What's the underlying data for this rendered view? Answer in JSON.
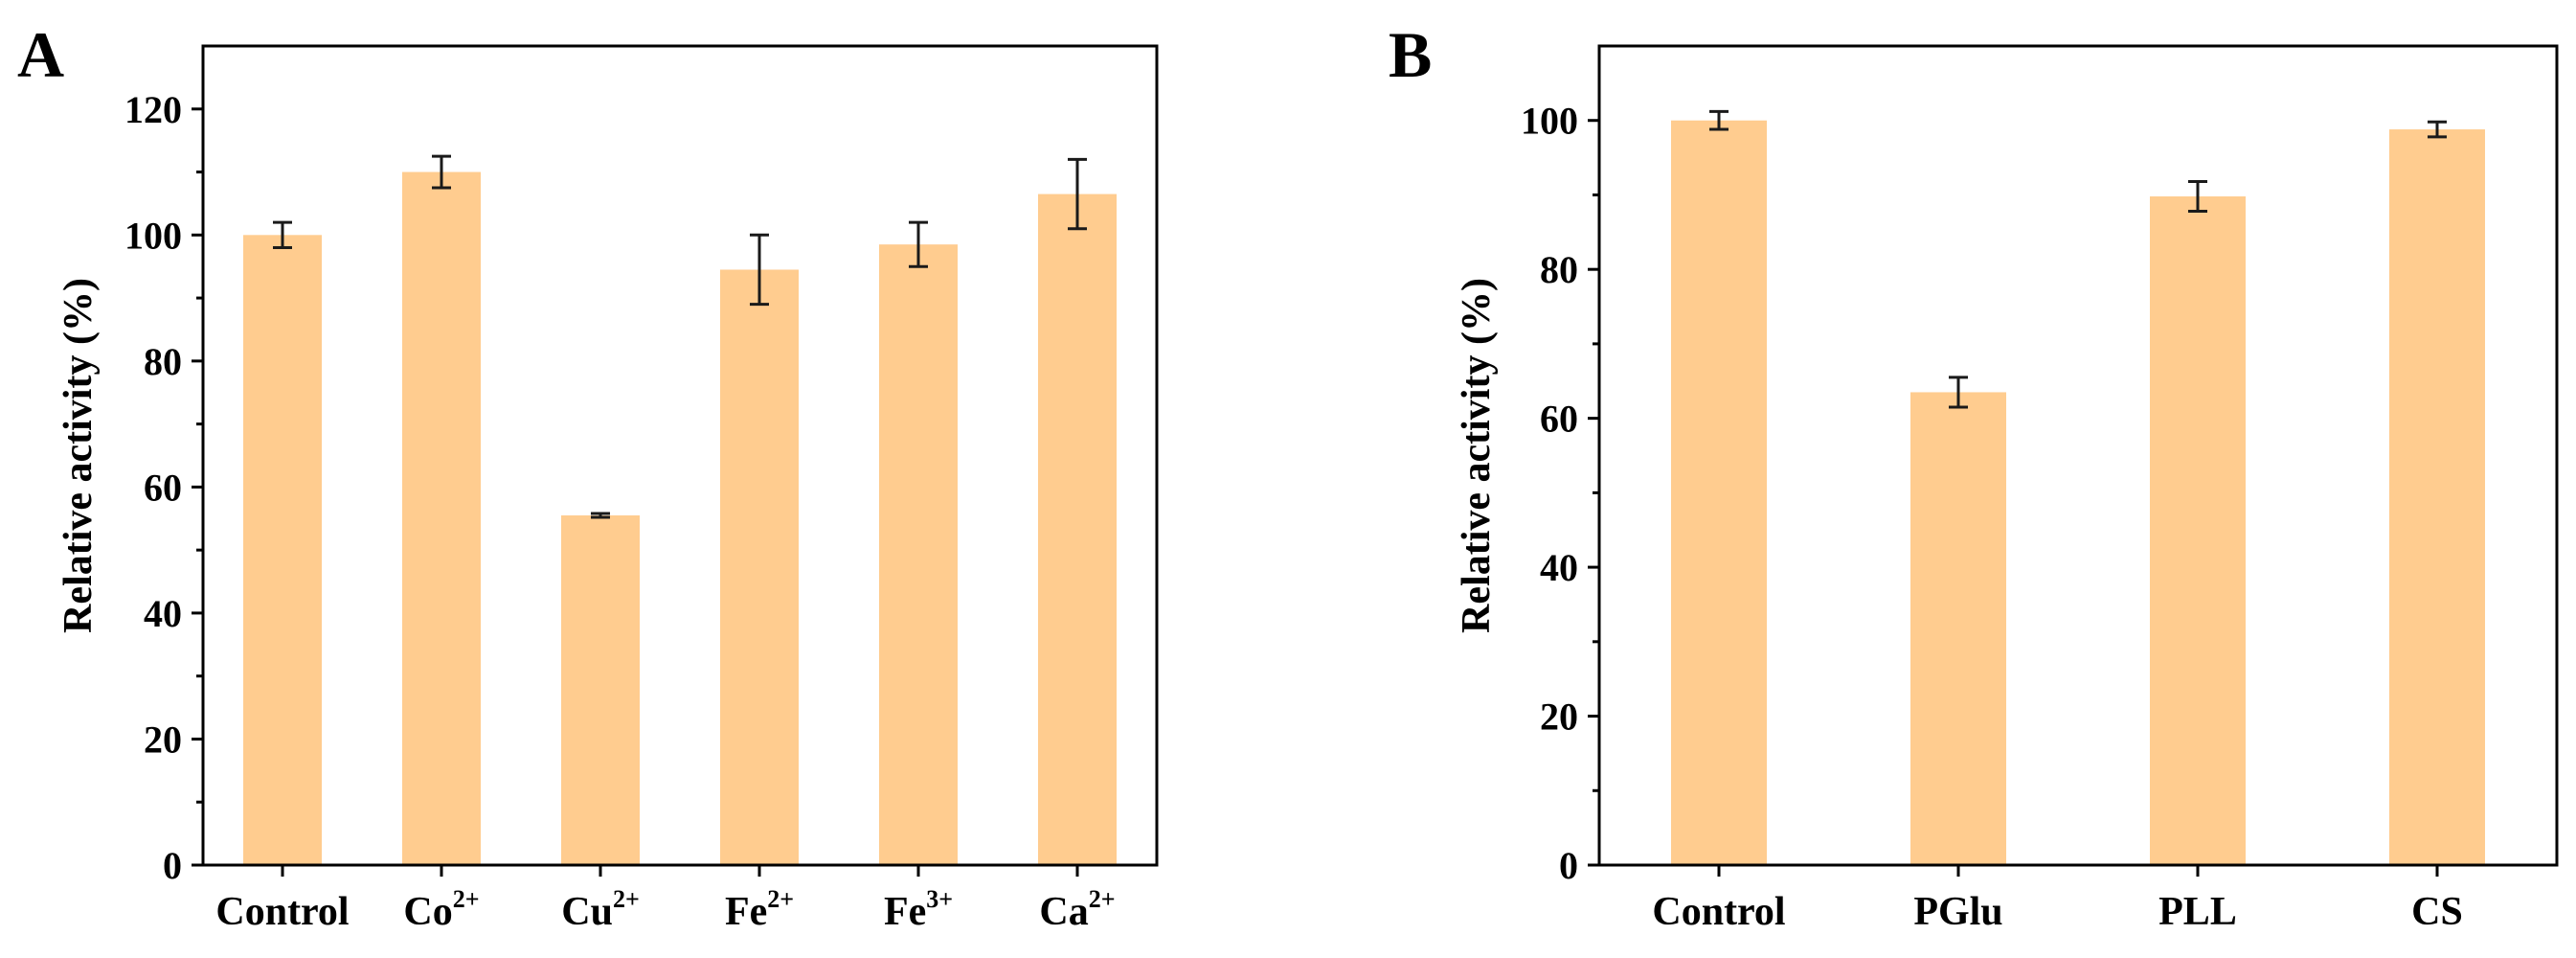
{
  "chart_data": [
    {
      "panel": "A",
      "type": "bar",
      "ylabel": "Relative activity (%)",
      "ylim": [
        0,
        130
      ],
      "yticks": [
        0,
        20,
        40,
        60,
        80,
        100,
        120
      ],
      "bar_color": "#FFCC8F",
      "categories": [
        {
          "base": "Control",
          "sup": ""
        },
        {
          "base": "Co",
          "sup": "2+"
        },
        {
          "base": "Cu",
          "sup": "2+"
        },
        {
          "base": "Fe",
          "sup": "2+"
        },
        {
          "base": "Fe",
          "sup": "3+"
        },
        {
          "base": "Ca",
          "sup": "2+"
        }
      ],
      "values": [
        100,
        110,
        55.5,
        94.5,
        98.5,
        106.5
      ],
      "errors": [
        2,
        2.5,
        0.3,
        5.5,
        3.5,
        5.5
      ]
    },
    {
      "panel": "B",
      "type": "bar",
      "ylabel": "Relative activity (%)",
      "ylim": [
        0,
        110
      ],
      "yticks": [
        0,
        20,
        40,
        60,
        80,
        100
      ],
      "bar_color": "#FFCC8F",
      "categories": [
        {
          "base": "Control",
          "sup": ""
        },
        {
          "base": "PGlu",
          "sup": ""
        },
        {
          "base": "PLL",
          "sup": ""
        },
        {
          "base": "CS",
          "sup": ""
        }
      ],
      "values": [
        100,
        63.5,
        89.8,
        98.8
      ],
      "errors": [
        1.2,
        2,
        2,
        1
      ]
    }
  ]
}
